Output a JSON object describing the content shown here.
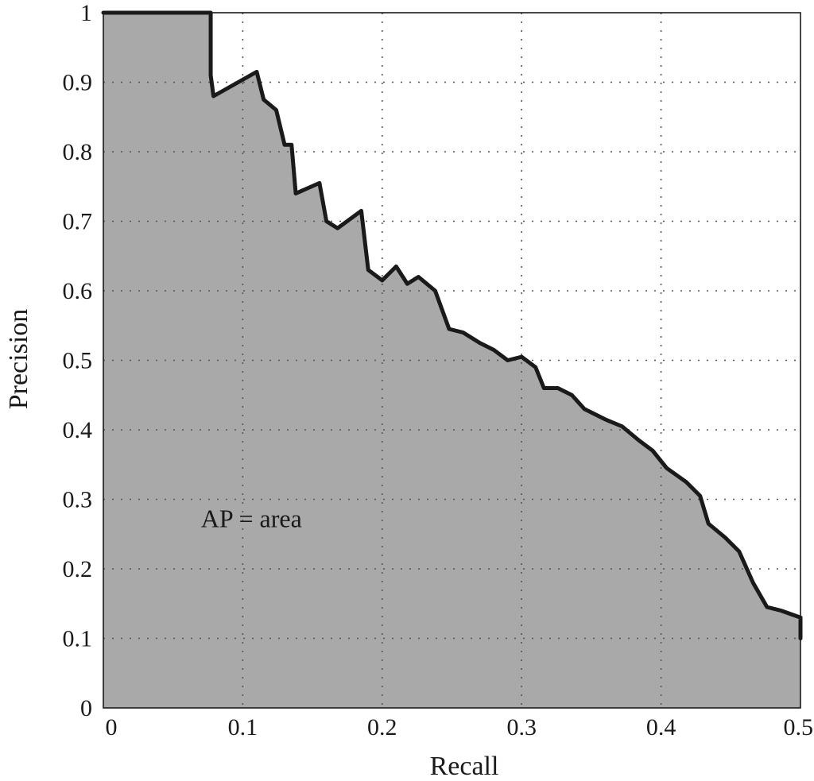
{
  "chart_data": {
    "type": "area",
    "title": "",
    "xlabel": "Recall",
    "ylabel": "Precision",
    "xlim": [
      0,
      0.5
    ],
    "ylim": [
      0,
      1
    ],
    "grid": true,
    "x_ticks": [
      "0",
      "0.1",
      "0.2",
      "0.3",
      "0.4",
      "0.5"
    ],
    "y_ticks": [
      "0",
      "0.1",
      "0.2",
      "0.3",
      "0.4",
      "0.5",
      "0.6",
      "0.7",
      "0.8",
      "0.9",
      "1"
    ],
    "annotation": {
      "text": "AP = area",
      "x": 0.07,
      "y": 0.26
    },
    "fill_color": "#a9a9a9",
    "line_color": "#1a1a1a",
    "series": [
      {
        "points": [
          [
            0,
            1
          ],
          [
            0.077,
            1
          ],
          [
            0.077,
            0.91
          ],
          [
            0.079,
            0.88
          ],
          [
            0.11,
            0.915
          ],
          [
            0.115,
            0.875
          ],
          [
            0.124,
            0.86
          ],
          [
            0.13,
            0.81
          ],
          [
            0.135,
            0.81
          ],
          [
            0.138,
            0.74
          ],
          [
            0.155,
            0.755
          ],
          [
            0.16,
            0.7
          ],
          [
            0.168,
            0.69
          ],
          [
            0.185,
            0.715
          ],
          [
            0.19,
            0.63
          ],
          [
            0.2,
            0.615
          ],
          [
            0.21,
            0.635
          ],
          [
            0.218,
            0.61
          ],
          [
            0.226,
            0.62
          ],
          [
            0.238,
            0.6
          ],
          [
            0.248,
            0.545
          ],
          [
            0.258,
            0.54
          ],
          [
            0.27,
            0.525
          ],
          [
            0.28,
            0.515
          ],
          [
            0.29,
            0.5
          ],
          [
            0.3,
            0.505
          ],
          [
            0.31,
            0.49
          ],
          [
            0.316,
            0.46
          ],
          [
            0.326,
            0.46
          ],
          [
            0.336,
            0.45
          ],
          [
            0.345,
            0.43
          ],
          [
            0.36,
            0.415
          ],
          [
            0.372,
            0.405
          ],
          [
            0.384,
            0.385
          ],
          [
            0.394,
            0.37
          ],
          [
            0.404,
            0.345
          ],
          [
            0.418,
            0.325
          ],
          [
            0.428,
            0.305
          ],
          [
            0.434,
            0.265
          ],
          [
            0.446,
            0.245
          ],
          [
            0.456,
            0.225
          ],
          [
            0.466,
            0.18
          ],
          [
            0.476,
            0.145
          ],
          [
            0.486,
            0.14
          ],
          [
            0.5,
            0.13
          ],
          [
            0.5,
            0.1
          ]
        ]
      }
    ]
  }
}
